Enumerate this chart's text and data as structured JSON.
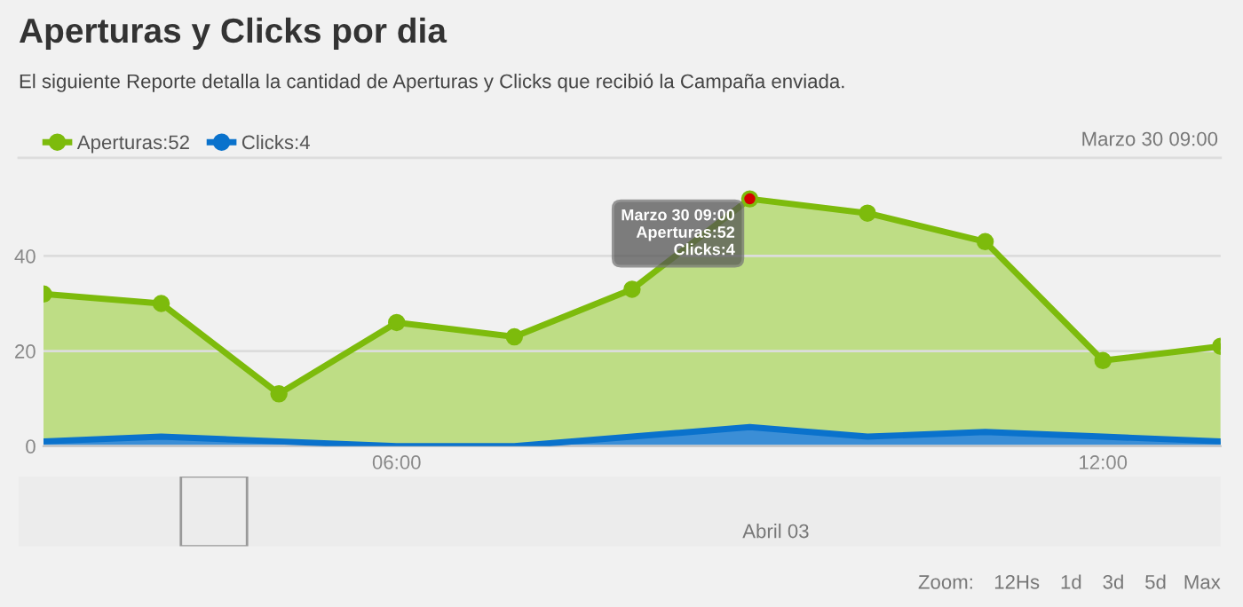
{
  "chart_data": {
    "type": "area",
    "title": "Aperturas y Clicks por dia",
    "subtitle": "El siguiente Reporte detalla la cantidad de Aperturas y Clicks que recibió la Campaña enviada.",
    "x": [
      3,
      4,
      5,
      6,
      7,
      8,
      9,
      10,
      11,
      12,
      13
    ],
    "series": [
      {
        "name": "Aperturas:52",
        "color": "#7dbb0c",
        "marker": "circle",
        "values": [
          32,
          30,
          11,
          26,
          23,
          33,
          52,
          49,
          43,
          18,
          21
        ]
      },
      {
        "name": "Clicks:4",
        "color": "#0a72cc",
        "marker": "none",
        "values": [
          1,
          2,
          1,
          0,
          0,
          2,
          4,
          2,
          3,
          2,
          1
        ]
      }
    ],
    "xlim": [
      3,
      13
    ],
    "xticks": [
      {
        "value": 6,
        "label": "06:00"
      },
      {
        "value": 12,
        "label": "12:00"
      }
    ],
    "ylim": [
      0,
      60
    ],
    "yticks": [
      0,
      20,
      40
    ],
    "grid": "y",
    "legend": "top left",
    "annotations": [
      {
        "text": "Marzo 30 09:00\nAperturas:52\nClicks:4",
        "x": 9,
        "y": 52
      },
      "Marzo 30 09:00",
      "Abril 03",
      "Zoom:",
      "12Hs",
      "1d",
      "3d",
      "5d",
      "Max"
    ]
  }
}
